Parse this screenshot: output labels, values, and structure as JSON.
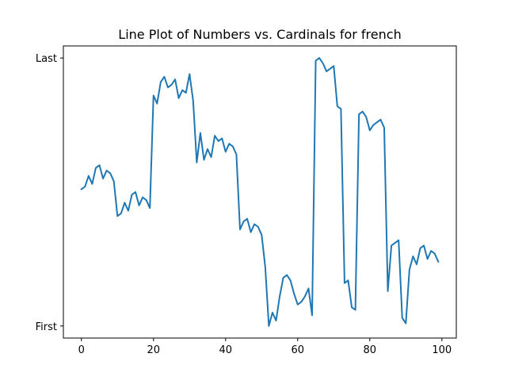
{
  "chart_data": {
    "type": "line",
    "title": "Line Plot of Numbers vs. Cardinals for french",
    "xlabel": "",
    "ylabel": "",
    "xlim": [
      -5,
      104
    ],
    "ylim": [
      -0.045,
      1.045
    ],
    "grid": false,
    "x_ticks": [
      {
        "value": 0,
        "label": "0"
      },
      {
        "value": 20,
        "label": "20"
      },
      {
        "value": 40,
        "label": "40"
      },
      {
        "value": 60,
        "label": "60"
      },
      {
        "value": 80,
        "label": "80"
      },
      {
        "value": 100,
        "label": "100"
      }
    ],
    "y_ticks": [
      {
        "value": 0,
        "label": "First"
      },
      {
        "value": 1,
        "label": "Last"
      }
    ],
    "series": [
      {
        "color": "#1f77b4",
        "x": [
          0,
          1,
          2,
          3,
          4,
          5,
          6,
          7,
          8,
          9,
          10,
          11,
          12,
          13,
          14,
          15,
          16,
          17,
          18,
          19,
          20,
          21,
          22,
          23,
          24,
          25,
          26,
          27,
          28,
          29,
          30,
          31,
          32,
          33,
          34,
          35,
          36,
          37,
          38,
          39,
          40,
          41,
          42,
          43,
          44,
          45,
          46,
          47,
          48,
          49,
          50,
          51,
          52,
          53,
          54,
          55,
          56,
          57,
          58,
          59,
          60,
          61,
          62,
          63,
          64,
          65,
          66,
          67,
          68,
          69,
          70,
          71,
          72,
          73,
          74,
          75,
          76,
          77,
          78,
          79,
          80,
          81,
          82,
          83,
          84,
          85,
          86,
          87,
          88,
          89,
          90,
          91,
          92,
          93,
          94,
          95,
          96,
          97,
          98,
          99
        ],
        "values": [
          0.51,
          0.52,
          0.56,
          0.53,
          0.59,
          0.6,
          0.55,
          0.58,
          0.57,
          0.54,
          0.41,
          0.42,
          0.46,
          0.43,
          0.49,
          0.5,
          0.45,
          0.48,
          0.47,
          0.44,
          0.86,
          0.83,
          0.91,
          0.93,
          0.89,
          0.9,
          0.92,
          0.85,
          0.88,
          0.87,
          0.94,
          0.84,
          0.61,
          0.72,
          0.62,
          0.66,
          0.63,
          0.71,
          0.69,
          0.7,
          0.65,
          0.68,
          0.67,
          0.64,
          0.36,
          0.39,
          0.4,
          0.35,
          0.38,
          0.37,
          0.34,
          0.22,
          0.0,
          0.05,
          0.02,
          0.11,
          0.18,
          0.19,
          0.17,
          0.12,
          0.08,
          0.09,
          0.11,
          0.14,
          0.04,
          0.99,
          1.0,
          0.98,
          0.95,
          0.96,
          0.97,
          0.82,
          0.81,
          0.16,
          0.17,
          0.07,
          0.06,
          0.79,
          0.8,
          0.78,
          0.73,
          0.75,
          0.76,
          0.77,
          0.74,
          0.13,
          0.3,
          0.31,
          0.32,
          0.03,
          0.01,
          0.21,
          0.26,
          0.23,
          0.29,
          0.3,
          0.25,
          0.28,
          0.27,
          0.24
        ]
      }
    ]
  }
}
